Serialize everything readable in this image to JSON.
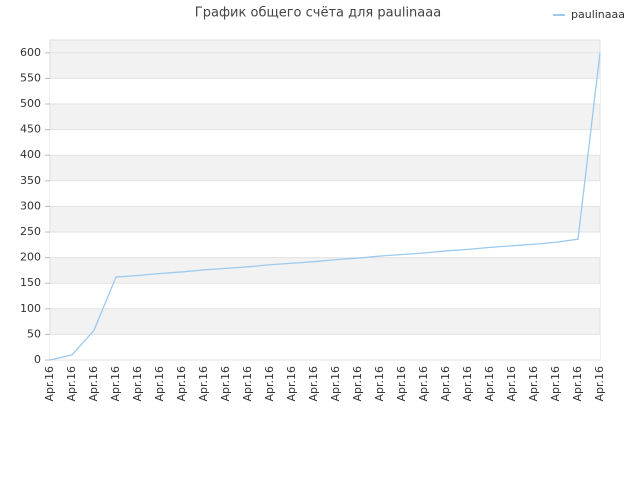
{
  "chart_data": {
    "type": "line",
    "title": "График общего счёта для paulinaaa",
    "categories": [
      "Apr.16",
      "Apr.16",
      "Apr.16",
      "Apr.16",
      "Apr.16",
      "Apr.16",
      "Apr.16",
      "Apr.16",
      "Apr.16",
      "Apr.16",
      "Apr.16",
      "Apr.16",
      "Apr.16",
      "Apr.16",
      "Apr.16",
      "Apr.16",
      "Apr.16",
      "Apr.16",
      "Apr.16",
      "Apr.16",
      "Apr.16",
      "Apr.16",
      "Apr.16",
      "Apr.16",
      "Apr.16",
      "Apr.16"
    ],
    "series": [
      {
        "name": "paulinaaa",
        "color": "#9cc9ee",
        "values": [
          0,
          10,
          58,
          162,
          165,
          169,
          172,
          176,
          179,
          182,
          186,
          189,
          192,
          196,
          199,
          203,
          206,
          209,
          213,
          216,
          220,
          223,
          226,
          230,
          236,
          600
        ]
      }
    ],
    "ylim": [
      0,
      625
    ],
    "yticks": [
      0,
      50,
      100,
      150,
      200,
      250,
      300,
      350,
      400,
      450,
      500,
      550,
      600
    ],
    "grid": true,
    "legend": "top-right"
  }
}
